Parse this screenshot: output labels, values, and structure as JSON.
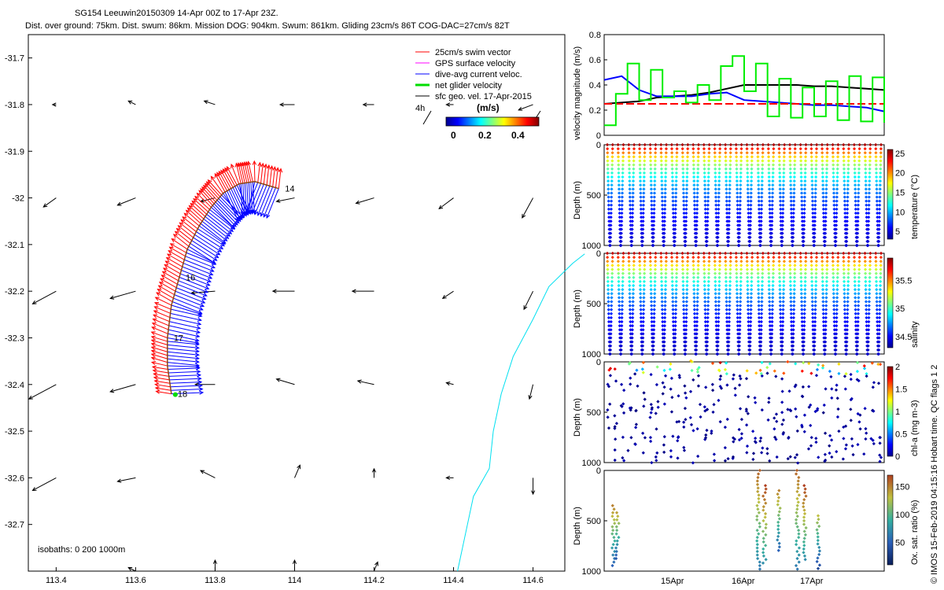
{
  "header": {
    "title_line1": "SG154 Leeuwin20150309 14-Apr 00Z to 17-Apr 23Z.",
    "title_line2": "Dist. over ground: 75km. Dist. swum: 86km. Mission DOG: 904km. Swum: 861km. Gliding 23cm/s 86T COG-DAC=27cm/s 82T"
  },
  "map": {
    "xticks": [
      "113.4",
      "113.6",
      "113.8",
      "114",
      "114.2",
      "114.4",
      "114.6"
    ],
    "yticks": [
      "-31.7",
      "-31.8",
      "-31.9",
      "-32",
      "-32.1",
      "-32.2",
      "-32.3",
      "-32.4",
      "-32.5",
      "-32.6",
      "-32.7"
    ],
    "legend": [
      "25cm/s swim vector",
      "GPS surface velocity",
      "dive-avg current veloc.",
      "net glider velocity",
      "sfc geo. vel. 17-Apr-2015"
    ],
    "legend_colors": [
      "#ff0000",
      "#ff00ff",
      "#0000ff",
      "#00dd00",
      "#000000"
    ],
    "scale_label": "4h",
    "colorbar_title": "(m/s)",
    "colorbar_ticks": [
      "0",
      "0.2",
      "0.4"
    ],
    "isobaths_label": "isobaths: 0   200  1000m",
    "track_labels": [
      "14",
      "16",
      "17",
      "18"
    ],
    "geo_vectors": [
      {
        "lon": 113.4,
        "lat": -31.8,
        "u": -0.02,
        "v": 0.0
      },
      {
        "lon": 113.6,
        "lat": -31.8,
        "u": -0.04,
        "v": 0.02
      },
      {
        "lon": 113.8,
        "lat": -31.8,
        "u": -0.06,
        "v": 0.02
      },
      {
        "lon": 114.0,
        "lat": -31.8,
        "u": -0.08,
        "v": 0.0
      },
      {
        "lon": 114.2,
        "lat": -31.8,
        "u": -0.06,
        "v": 0.0
      },
      {
        "lon": 114.4,
        "lat": -31.8,
        "u": -0.04,
        "v": 0.0
      },
      {
        "lon": 114.6,
        "lat": -31.8,
        "u": -0.08,
        "v": -0.03
      },
      {
        "lon": 113.4,
        "lat": -32.0,
        "u": -0.07,
        "v": -0.05
      },
      {
        "lon": 113.6,
        "lat": -32.0,
        "u": -0.1,
        "v": -0.04
      },
      {
        "lon": 113.8,
        "lat": -32.0,
        "u": -0.08,
        "v": -0.02
      },
      {
        "lon": 114.0,
        "lat": -32.0,
        "u": -0.1,
        "v": -0.02
      },
      {
        "lon": 114.2,
        "lat": -32.0,
        "u": -0.1,
        "v": -0.03
      },
      {
        "lon": 114.4,
        "lat": -32.0,
        "u": -0.08,
        "v": -0.06
      },
      {
        "lon": 114.6,
        "lat": -32.0,
        "u": -0.06,
        "v": -0.11
      },
      {
        "lon": 113.4,
        "lat": -32.2,
        "u": -0.13,
        "v": -0.07
      },
      {
        "lon": 113.6,
        "lat": -32.2,
        "u": -0.14,
        "v": -0.04
      },
      {
        "lon": 113.8,
        "lat": -32.2,
        "u": -0.13,
        "v": -0.01
      },
      {
        "lon": 114.0,
        "lat": -32.2,
        "u": -0.12,
        "v": 0.0
      },
      {
        "lon": 114.2,
        "lat": -32.2,
        "u": -0.12,
        "v": 0.0
      },
      {
        "lon": 114.4,
        "lat": -32.2,
        "u": -0.06,
        "v": -0.04
      },
      {
        "lon": 114.6,
        "lat": -32.2,
        "u": -0.05,
        "v": -0.1
      },
      {
        "lon": 113.4,
        "lat": -32.4,
        "u": -0.15,
        "v": -0.08
      },
      {
        "lon": 113.6,
        "lat": -32.4,
        "u": -0.14,
        "v": -0.04
      },
      {
        "lon": 113.8,
        "lat": -32.4,
        "u": -0.11,
        "v": 0.0
      },
      {
        "lon": 114.0,
        "lat": -32.4,
        "u": -0.1,
        "v": 0.03
      },
      {
        "lon": 114.2,
        "lat": -32.4,
        "u": -0.09,
        "v": 0.02
      },
      {
        "lon": 114.4,
        "lat": -32.4,
        "u": -0.04,
        "v": 0.01
      },
      {
        "lon": 114.6,
        "lat": -32.4,
        "u": -0.02,
        "v": -0.08
      },
      {
        "lon": 113.4,
        "lat": -32.6,
        "u": -0.13,
        "v": -0.07
      },
      {
        "lon": 113.6,
        "lat": -32.6,
        "u": -0.1,
        "v": -0.02
      },
      {
        "lon": 113.8,
        "lat": -32.6,
        "u": -0.08,
        "v": 0.04
      },
      {
        "lon": 114.0,
        "lat": -32.6,
        "u": 0.03,
        "v": 0.07
      },
      {
        "lon": 114.2,
        "lat": -32.6,
        "u": 0.0,
        "v": 0.05
      },
      {
        "lon": 114.4,
        "lat": -32.6,
        "u": -0.04,
        "v": 0.0
      },
      {
        "lon": 114.6,
        "lat": -32.6,
        "u": 0.0,
        "v": -0.09
      },
      {
        "lon": 113.6,
        "lat": -32.8,
        "u": -0.04,
        "v": 0.02
      },
      {
        "lon": 113.8,
        "lat": -32.8,
        "u": 0.0,
        "v": 0.06
      },
      {
        "lon": 114.0,
        "lat": -32.8,
        "u": 0.0,
        "v": 0.06
      },
      {
        "lon": 114.2,
        "lat": -32.8,
        "u": 0.02,
        "v": 0.05
      }
    ],
    "track": [
      {
        "lon": 113.96,
        "lat": -31.98
      },
      {
        "lon": 113.9,
        "lat": -31.965
      },
      {
        "lon": 113.86,
        "lat": -31.97
      },
      {
        "lon": 113.82,
        "lat": -31.99
      },
      {
        "lon": 113.79,
        "lat": -32.02
      },
      {
        "lon": 113.76,
        "lat": -32.06
      },
      {
        "lon": 113.73,
        "lat": -32.11
      },
      {
        "lon": 113.71,
        "lat": -32.17
      },
      {
        "lon": 113.69,
        "lat": -32.23
      },
      {
        "lon": 113.68,
        "lat": -32.3
      },
      {
        "lon": 113.68,
        "lat": -32.36
      },
      {
        "lon": 113.69,
        "lat": -32.42
      }
    ],
    "coast": [
      {
        "lon": 114.73,
        "lat": -32.12
      },
      {
        "lon": 114.7,
        "lat": -32.14
      },
      {
        "lon": 114.64,
        "lat": -32.19
      },
      {
        "lon": 114.6,
        "lat": -32.26
      },
      {
        "lon": 114.55,
        "lat": -32.34
      },
      {
        "lon": 114.52,
        "lat": -32.42
      },
      {
        "lon": 114.5,
        "lat": -32.5
      },
      {
        "lon": 114.49,
        "lat": -32.58
      },
      {
        "lon": 114.45,
        "lat": -32.64
      },
      {
        "lon": 114.43,
        "lat": -32.72
      },
      {
        "lon": 114.41,
        "lat": -32.8
      }
    ]
  },
  "chart_data": [
    {
      "type": "map-quiver",
      "title": "SG154 Leeuwin20150309 14-Apr 00Z to 17-Apr 23Z.",
      "xlim": [
        113.33,
        114.68
      ],
      "ylim": [
        -32.8,
        -31.65
      ]
    },
    {
      "type": "line",
      "ylabel": "velocity magnitude (m/s)",
      "ylim": [
        0,
        0.8
      ],
      "yticks": [
        "0",
        "0.2",
        "0.4",
        "0.6",
        "0.8"
      ],
      "xlim": [
        0,
        96
      ],
      "series": [
        {
          "name": "net glider velocity",
          "color": "#000000",
          "x": [
            0,
            6,
            12,
            18,
            24,
            30,
            36,
            42,
            48,
            54,
            60,
            66,
            72,
            78,
            84,
            90,
            96
          ],
          "values": [
            0.25,
            0.26,
            0.27,
            0.3,
            0.31,
            0.32,
            0.34,
            0.37,
            0.4,
            0.4,
            0.4,
            0.4,
            0.39,
            0.39,
            0.38,
            0.37,
            0.36
          ]
        },
        {
          "name": "dive-avg current veloc.",
          "color": "#0000ff",
          "x": [
            0,
            6,
            12,
            18,
            24,
            30,
            36,
            42,
            48,
            54,
            60,
            66,
            72,
            78,
            84,
            90,
            96
          ],
          "values": [
            0.44,
            0.47,
            0.36,
            0.31,
            0.31,
            0.31,
            0.33,
            0.34,
            0.28,
            0.27,
            0.26,
            0.25,
            0.24,
            0.24,
            0.23,
            0.22,
            0.19
          ]
        },
        {
          "name": "25cm/s swim vector",
          "color": "#ff0000",
          "x": [
            0,
            96
          ],
          "values": [
            0.25,
            0.25
          ]
        },
        {
          "name": "swim speed",
          "color": "#00ee00",
          "x": [
            0,
            4,
            8,
            12,
            16,
            20,
            24,
            28,
            32,
            36,
            40,
            44,
            48,
            52,
            56,
            60,
            64,
            68,
            72,
            76,
            80,
            84,
            88,
            92,
            96
          ],
          "values": [
            0.08,
            0.33,
            0.57,
            0.28,
            0.52,
            0.3,
            0.35,
            0.26,
            0.4,
            0.28,
            0.55,
            0.63,
            0.35,
            0.57,
            0.15,
            0.45,
            0.14,
            0.38,
            0.15,
            0.43,
            0.12,
            0.47,
            0.11,
            0.46,
            0.1
          ]
        }
      ]
    },
    {
      "type": "scatter",
      "name": "temperature",
      "ylabel": "Depth (m)",
      "yticks": [
        "0",
        "500",
        "1000"
      ],
      "colorbar_label": "temperature (°C)",
      "colorbar_ticks": [
        "5",
        "10",
        "15",
        "20",
        "25"
      ],
      "cmin": 3,
      "cmax": 26,
      "n_profiles": 52,
      "surface": 25,
      "deep": 4
    },
    {
      "type": "scatter",
      "name": "salinity",
      "ylabel": "Depth (m)",
      "yticks": [
        "0",
        "500",
        "1000"
      ],
      "colorbar_label": "salinity",
      "colorbar_ticks": [
        "34.5",
        "35",
        "35.5"
      ],
      "cmin": 34.3,
      "cmax": 35.9,
      "n_profiles": 52,
      "surface": 35.8,
      "deep": 34.35
    },
    {
      "type": "scatter",
      "name": "chl-a",
      "ylabel": "Depth (m)",
      "yticks": [
        "0",
        "500",
        "1000"
      ],
      "colorbar_label": "chl-a (mg m-3)",
      "colorbar_ticks": [
        "0",
        "0.5",
        "1",
        "1.5",
        "2"
      ],
      "cmin": 0,
      "cmax": 2
    },
    {
      "type": "scatter",
      "name": "oxygen",
      "ylabel": "Depth (m)",
      "yticks": [
        "0",
        "500",
        "1000"
      ],
      "colorbar_label": "Ox. sat. ratio (%)",
      "colorbar_ticks": [
        "50",
        "100",
        "150"
      ],
      "cmin": 10,
      "cmax": 170,
      "xticks": [
        "15Apr",
        "16Apr",
        "17Apr"
      ]
    }
  ],
  "footer": {
    "credit": "© IMOS 15-Feb-2019 04:15:16 Hobart time. QC flags 1  2"
  }
}
